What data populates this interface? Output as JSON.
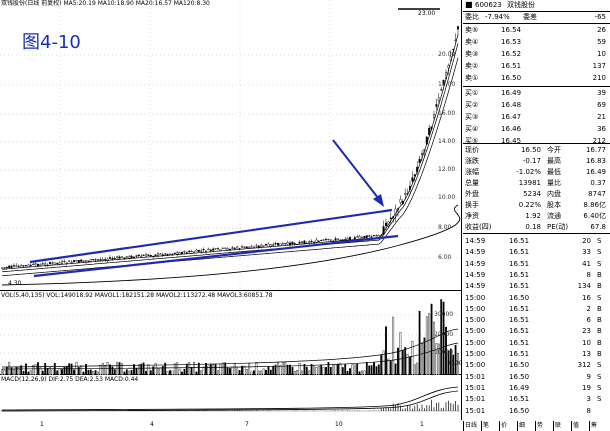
{
  "figure_label": "图4-10",
  "main_chart": {
    "ma_legend": "双钱股份(日线 前复权) MA5:20.19 MA10:18.90 MA20:16.57 MA120:8.30",
    "high_label": "23.00",
    "low_label": "4.30",
    "price_ticks": [
      "20.00",
      "18.00",
      "16.00",
      "14.00",
      "12.00",
      "10.00",
      "8.00",
      "6.00"
    ]
  },
  "volume_chart": {
    "legend": "VOL(5,40,135) VOL:149018.92 MAVOL1:182151.28 MAVOL2:113272.48 MAVOL3:60851.78",
    "ticks": [
      "30000",
      "20000",
      "10000"
    ],
    "unit": "X100"
  },
  "macd_chart": {
    "legend": "MACD(12,26,9) DIF:2.75 DEA:2.53 MACD:0.44"
  },
  "x_axis": [
    "1",
    "4",
    "7",
    "10",
    "1"
  ],
  "quote": {
    "code": "600623",
    "name": "双钱股份",
    "weibi_label": "委比",
    "weibi_value": "-7.94%",
    "weicha_label": "委差",
    "weicha_value": "-65",
    "sells": [
      {
        "label": "卖⑤",
        "price": "16.54",
        "vol": "26"
      },
      {
        "label": "卖④",
        "price": "16.53",
        "vol": "59"
      },
      {
        "label": "卖③",
        "price": "16.52",
        "vol": "10"
      },
      {
        "label": "卖②",
        "price": "16.51",
        "vol": "137"
      },
      {
        "label": "卖①",
        "price": "16.50",
        "vol": "210"
      }
    ],
    "buys": [
      {
        "label": "买①",
        "price": "16.49",
        "vol": "39"
      },
      {
        "label": "买②",
        "price": "16.48",
        "vol": "69"
      },
      {
        "label": "买③",
        "price": "16.47",
        "vol": "21"
      },
      {
        "label": "买④",
        "price": "16.46",
        "vol": "36"
      },
      {
        "label": "买⑤",
        "price": "16.45",
        "vol": "212"
      }
    ],
    "stats": [
      {
        "l1": "现价",
        "v1": "16.50",
        "l2": "今开",
        "v2": "16.77"
      },
      {
        "l1": "涨跌",
        "v1": "-0.17",
        "l2": "最高",
        "v2": "16.83"
      },
      {
        "l1": "涨幅",
        "v1": "-1.02%",
        "l2": "最低",
        "v2": "16.49"
      },
      {
        "l1": "总量",
        "v1": "13981",
        "l2": "量比",
        "v2": "0.37"
      },
      {
        "l1": "外盘",
        "v1": "5234",
        "l2": "内盘",
        "v2": "8747"
      },
      {
        "l1": "换手",
        "v1": "0.22%",
        "l2": "股本",
        "v2": "8.86亿"
      },
      {
        "l1": "净资",
        "v1": "1.92",
        "l2": "流通",
        "v2": "6.40亿"
      },
      {
        "l1": "收益(四)",
        "v1": "0.18",
        "l2": "PE(动)",
        "v2": "67.8"
      }
    ],
    "ticks": [
      {
        "time": "14:59",
        "price": "16.51",
        "vol": "20",
        "flag": "S"
      },
      {
        "time": "14:59",
        "price": "16.51",
        "vol": "33",
        "flag": "S"
      },
      {
        "time": "14:59",
        "price": "16.51",
        "vol": "41",
        "flag": "S"
      },
      {
        "time": "14:59",
        "price": "16.51",
        "vol": "8",
        "flag": "B"
      },
      {
        "time": "14:59",
        "price": "16.51",
        "vol": "134",
        "flag": "B"
      },
      {
        "time": "15:00",
        "price": "16.50",
        "vol": "16",
        "flag": "S"
      },
      {
        "time": "15:00",
        "price": "16.51",
        "vol": "2",
        "flag": "B"
      },
      {
        "time": "15:00",
        "price": "16.51",
        "vol": "6",
        "flag": "B"
      },
      {
        "time": "15:00",
        "price": "16.51",
        "vol": "23",
        "flag": "B"
      },
      {
        "time": "15:00",
        "price": "16.51",
        "vol": "10",
        "flag": "B"
      },
      {
        "time": "15:00",
        "price": "16.51",
        "vol": "13",
        "flag": "B"
      },
      {
        "time": "15:00",
        "price": "16.50",
        "vol": "312",
        "flag": "S"
      },
      {
        "time": "15:01",
        "price": "16.50",
        "vol": "9",
        "flag": "S"
      },
      {
        "time": "15:01",
        "price": "16.49",
        "vol": "19",
        "flag": "S"
      },
      {
        "time": "15:01",
        "price": "16.51",
        "vol": "3",
        "flag": "S"
      },
      {
        "time": "15:01",
        "price": "16.50",
        "vol": "8",
        "flag": ""
      }
    ],
    "tabs": [
      "日线",
      "笔",
      "价",
      "细",
      "势",
      "联",
      "值",
      "筹"
    ]
  },
  "colors": {
    "trendline": "#1c2ab5",
    "arrow": "#1c2ab5",
    "figure_tag": "#1a2fb8"
  }
}
